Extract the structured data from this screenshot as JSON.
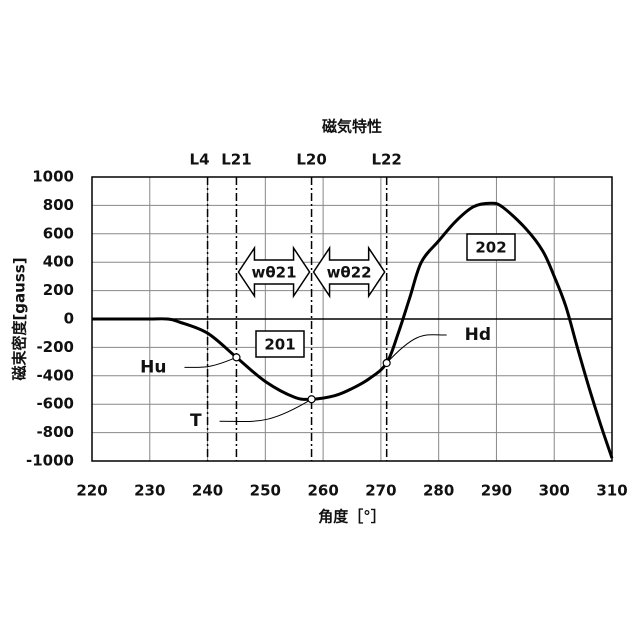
{
  "chart_data": {
    "type": "line",
    "title": "磁気特性",
    "xlabel": "角度［°］",
    "ylabel": "磁束密度[gauss]",
    "x": [
      220,
      225,
      230,
      233,
      235,
      240,
      245,
      250,
      255,
      258,
      262,
      265,
      268,
      271,
      273,
      275,
      277,
      280,
      283,
      286,
      289,
      291,
      295,
      298,
      300,
      302,
      304,
      306,
      308,
      310
    ],
    "values": [
      0,
      0,
      0,
      0,
      -20,
      -100,
      -270,
      -440,
      -550,
      -565,
      -540,
      -490,
      -420,
      -310,
      -100,
      150,
      400,
      550,
      690,
      790,
      815,
      790,
      640,
      480,
      300,
      90,
      -200,
      -480,
      -740,
      -980
    ],
    "color": "#000000",
    "xlim": [
      220,
      310
    ],
    "xticks": [
      220,
      230,
      240,
      250,
      260,
      270,
      280,
      290,
      300,
      310
    ],
    "ylim": [
      -1000,
      1000
    ],
    "yticks": [
      -1000,
      -800,
      -600,
      -400,
      -200,
      0,
      200,
      400,
      600,
      800,
      1000
    ],
    "grid": true,
    "vlines": [
      {
        "label": "L4",
        "x": 240
      },
      {
        "label": "L21",
        "x": 245
      },
      {
        "label": "L20",
        "x": 258
      },
      {
        "label": "L22",
        "x": 271
      }
    ],
    "points": [
      {
        "label": "Hu",
        "x": 245,
        "y": -270
      },
      {
        "label": "T",
        "x": 258,
        "y": -565
      },
      {
        "label": "Hd",
        "x": 271,
        "y": -310
      }
    ],
    "spans": [
      {
        "label": "wθ21",
        "from": 245,
        "to": 258
      },
      {
        "label": "wθ22",
        "from": 258,
        "to": 271
      }
    ],
    "regions": [
      "201",
      "202"
    ]
  }
}
